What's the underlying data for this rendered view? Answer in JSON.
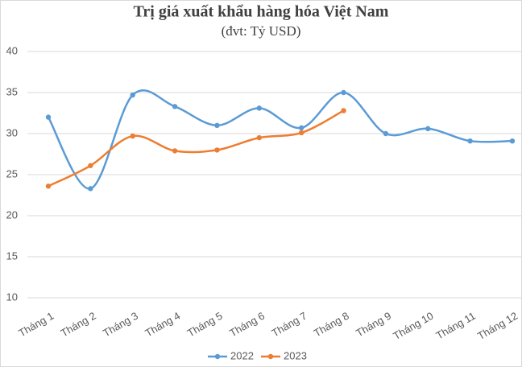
{
  "chart_data": {
    "type": "line",
    "title": "Trị giá xuất khẩu hàng hóa Việt Nam",
    "subtitle": "(đvt: Tỷ USD)",
    "categories": [
      "Tháng 1",
      "Tháng 2",
      "Tháng 3",
      "Tháng 4",
      "Tháng 5",
      "Tháng 6",
      "Tháng 7",
      "Tháng 8",
      "Tháng 9",
      "Tháng 10",
      "Tháng 11",
      "Tháng 12"
    ],
    "series": [
      {
        "name": "2022",
        "color": "#5b9bd5",
        "values": [
          32,
          23.3,
          34.7,
          33.3,
          31,
          33.1,
          30.7,
          35,
          30,
          30.6,
          29.1,
          29.1
        ]
      },
      {
        "name": "2023",
        "color": "#ed7d31",
        "values": [
          23.6,
          26.1,
          29.7,
          27.9,
          28,
          29.5,
          30.1,
          32.8,
          null,
          null,
          null,
          null
        ]
      }
    ],
    "ylim": [
      10,
      40
    ],
    "yticks": [
      10,
      15,
      20,
      25,
      30,
      35,
      40
    ],
    "grid": true,
    "smooth": true,
    "legend": "bottom"
  }
}
